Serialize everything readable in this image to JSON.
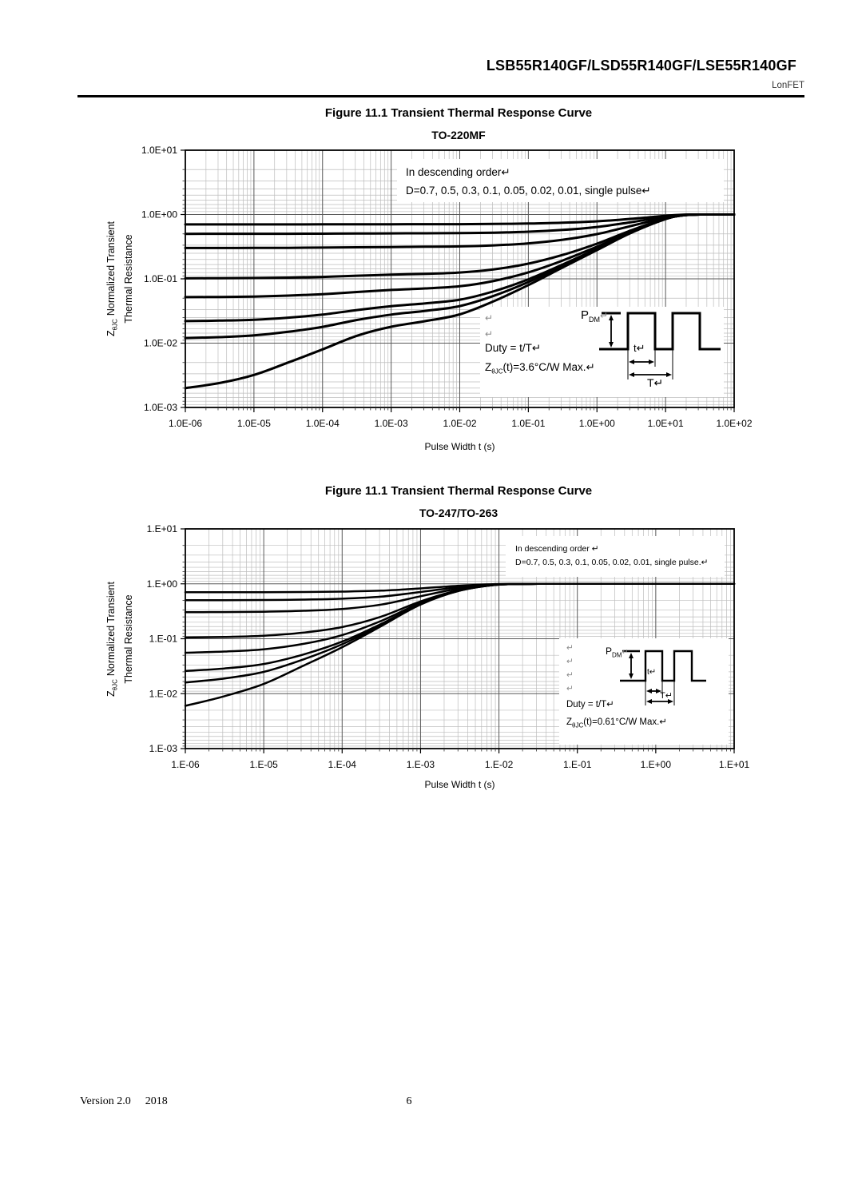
{
  "header": {
    "title": "LSB55R140GF/LSD55R140GF/LSE55R140GF",
    "brand": "LonFET"
  },
  "footer": {
    "version": "Version 2.0",
    "year": "2018",
    "page_number": "6",
    "bar_color": "#662929"
  },
  "chart_data": [
    {
      "type": "line",
      "title": "Figure 11.1 Transient Thermal Response Curve",
      "subtitle": "TO-220MF",
      "xlabel": "Pulse Width t (s)",
      "ylabel": {
        "symbol": "Z",
        "symbol_sub": "θJC",
        "line1": "Normalized Transient",
        "line2": "Thermal Resistance"
      },
      "x_scale": "log",
      "y_scale": "log",
      "xlim": [
        1e-06,
        100.0
      ],
      "ylim": [
        0.001,
        10.0
      ],
      "x_tick_labels": [
        "1.0E-06",
        "1.0E-05",
        "1.0E-04",
        "1.0E-03",
        "1.0E-02",
        "1.0E-01",
        "1.0E+00",
        "1.0E+01",
        "1.0E+02"
      ],
      "y_tick_labels": [
        "1.0E+01",
        "1.0E+00",
        "1.0E-01",
        "1.0E-02",
        "1.0E-03"
      ],
      "legend_note": {
        "line1": "In descending order↵",
        "line2": "D=0.7, 0.5, 0.3, 0.1, 0.05, 0.02, 0.01, single pulse↵"
      },
      "pulse_note": {
        "returns": "↵\n↵",
        "duty": "Duty = t/T↵",
        "z_prefix": "Z",
        "z_sub": "θJC",
        "z_rest": "(t)=3.6°C/W Max.↵",
        "p_label": "P",
        "p_sub": "DM",
        "p_return": "↵",
        "t_label": "t↵",
        "T_label": "T↵"
      },
      "x": [
        1e-06,
        3.16e-06,
        1e-05,
        3.16e-05,
        0.0001,
        0.000316,
        0.001,
        0.00316,
        0.01,
        0.0316,
        0.1,
        0.316,
        1,
        3.16,
        10,
        17.8,
        31.6,
        100
      ],
      "series": [
        {
          "name": "D=0.7",
          "y": [
            0.7006,
            0.7007,
            0.701,
            0.7015,
            0.7024,
            0.7039,
            0.7054,
            0.7066,
            0.7084,
            0.7135,
            0.724,
            0.745,
            0.784,
            0.856,
            0.955,
            0.991,
            1,
            1
          ]
        },
        {
          "name": "D=0.5",
          "y": [
            0.501,
            0.5012,
            0.5016,
            0.5025,
            0.504,
            0.5065,
            0.509,
            0.511,
            0.514,
            0.5225,
            0.54,
            0.575,
            0.64,
            0.76,
            0.925,
            0.985,
            1,
            1
          ]
        },
        {
          "name": "D=0.3",
          "y": [
            0.3014,
            0.3017,
            0.3022,
            0.3035,
            0.3056,
            0.3091,
            0.3126,
            0.3154,
            0.3196,
            0.3315,
            0.356,
            0.405,
            0.496,
            0.664,
            0.895,
            0.979,
            1,
            1
          ]
        },
        {
          "name": "D=0.1",
          "y": [
            0.1018,
            0.1022,
            0.1029,
            0.1045,
            0.1072,
            0.1117,
            0.1162,
            0.1198,
            0.1252,
            0.1405,
            0.172,
            0.235,
            0.352,
            0.568,
            0.865,
            0.973,
            1,
            1
          ]
        },
        {
          "name": "D=0.05",
          "y": [
            0.0519,
            0.0523,
            0.053,
            0.0548,
            0.0576,
            0.0624,
            0.0671,
            0.0709,
            0.0766,
            0.0928,
            0.126,
            0.1925,
            0.316,
            0.544,
            0.8575,
            0.9715,
            1,
            1
          ]
        },
        {
          "name": "D=0.02",
          "y": [
            0.022,
            0.0224,
            0.0231,
            0.0249,
            0.0278,
            0.0327,
            0.0376,
            0.0416,
            0.0474,
            0.0641,
            0.0984,
            0.167,
            0.2944,
            0.5296,
            0.853,
            0.9706,
            1,
            1
          ]
        },
        {
          "name": "D=0.01",
          "y": [
            0.012,
            0.0124,
            0.0132,
            0.015,
            0.0179,
            0.0229,
            0.0278,
            0.0318,
            0.0377,
            0.0546,
            0.0892,
            0.1585,
            0.2872,
            0.5248,
            0.8515,
            0.9703,
            1,
            1
          ]
        },
        {
          "name": "single pulse",
          "y": [
            0.002,
            0.0024,
            0.0032,
            0.005,
            0.008,
            0.013,
            0.018,
            0.022,
            0.028,
            0.045,
            0.08,
            0.15,
            0.28,
            0.52,
            0.85,
            0.97,
            1,
            1
          ]
        }
      ]
    },
    {
      "type": "line",
      "title": "Figure 11.1 Transient Thermal Response Curve",
      "subtitle": "TO-247/TO-263",
      "xlabel": "Pulse Width t (s)",
      "ylabel": {
        "symbol": "Z",
        "symbol_sub": "θJC",
        "line1": "Normalized Transient",
        "line2": "Thermal Resistance"
      },
      "x_scale": "log",
      "y_scale": "log",
      "xlim": [
        1e-06,
        10.0
      ],
      "ylim": [
        0.001,
        10.0
      ],
      "x_tick_labels": [
        "1.E-06",
        "1.E-05",
        "1.E-04",
        "1.E-03",
        "1.E-02",
        "1.E-01",
        "1.E+00",
        "1.E+01"
      ],
      "y_tick_labels": [
        "1.E+01",
        "1.E+00",
        "1.E-01",
        "1.E-02",
        "1.E-03"
      ],
      "legend_note": {
        "line1": "In descending order ↵",
        "line2": "D=0.7, 0.5, 0.3, 0.1, 0.05, 0.02, 0.01, single pulse.↵"
      },
      "pulse_note": {
        "returns": "↵\n↵\n↵\n↵",
        "duty": "Duty = t/T↵",
        "z_prefix": "Z",
        "z_sub": "θJC",
        "z_rest": "(t)=0.61°C/W Max.↵",
        "p_label": "P",
        "p_sub": "DM",
        "p_return": "↵",
        "t_label": "t↵",
        "T_label": "T↵"
      },
      "x": [
        1e-06,
        3.16e-06,
        1e-05,
        3.16e-05,
        0.0001,
        0.000316,
        0.001,
        0.00316,
        0.01,
        0.0316,
        0.1,
        1,
        10
      ],
      "series": [
        {
          "name": "D=0.7",
          "y": [
            0.7018,
            0.7027,
            0.7045,
            0.7096,
            0.721,
            0.751,
            0.826,
            0.925,
            0.991,
            1,
            1,
            1,
            1
          ]
        },
        {
          "name": "D=0.5",
          "y": [
            0.503,
            0.5045,
            0.5075,
            0.516,
            0.535,
            0.585,
            0.71,
            0.875,
            0.985,
            1,
            1,
            1,
            1
          ]
        },
        {
          "name": "D=0.3",
          "y": [
            0.3042,
            0.3063,
            0.3105,
            0.3224,
            0.349,
            0.419,
            0.594,
            0.825,
            0.979,
            1,
            1,
            1,
            1
          ]
        },
        {
          "name": "D=0.1",
          "y": [
            0.1054,
            0.1081,
            0.1135,
            0.1288,
            0.163,
            0.253,
            0.478,
            0.775,
            0.973,
            1,
            1,
            1,
            1
          ]
        },
        {
          "name": "D=0.05",
          "y": [
            0.0557,
            0.0586,
            0.0643,
            0.0804,
            0.1165,
            0.2115,
            0.449,
            0.7625,
            0.9715,
            1,
            1,
            1,
            1
          ]
        },
        {
          "name": "D=0.02",
          "y": [
            0.0259,
            0.0288,
            0.0347,
            0.0514,
            0.0886,
            0.1866,
            0.4316,
            0.755,
            0.9706,
            1,
            1,
            1,
            1
          ]
        },
        {
          "name": "D=0.01",
          "y": [
            0.016,
            0.0189,
            0.0249,
            0.0417,
            0.0793,
            0.178,
            0.426,
            0.7525,
            0.9703,
            1,
            1,
            1,
            1
          ]
        },
        {
          "name": "single pulse",
          "y": [
            0.006,
            0.009,
            0.015,
            0.032,
            0.07,
            0.17,
            0.42,
            0.75,
            0.97,
            1,
            1,
            1,
            1
          ]
        }
      ]
    }
  ]
}
